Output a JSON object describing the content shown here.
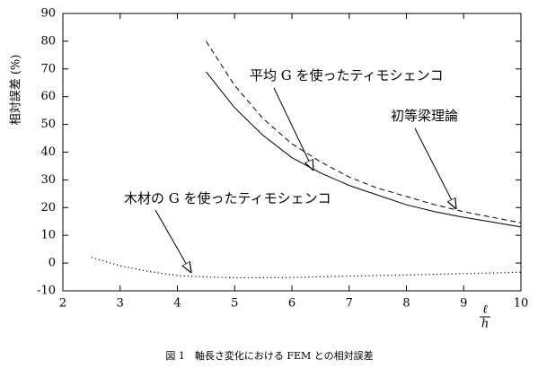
{
  "chart_data": {
    "type": "line",
    "ylabel": "相対誤差 (%)",
    "xlabel_numerator": "ℓ",
    "xlabel_denominator": "h",
    "caption": "図 1　軸長さ変化における FEM との相対誤差",
    "xlim": [
      2,
      10
    ],
    "xticks": [
      2,
      3,
      4,
      5,
      6,
      7,
      8,
      9,
      10
    ],
    "ylim": [
      -10,
      90
    ],
    "yticks": [
      -10,
      0,
      10,
      20,
      30,
      40,
      50,
      60,
      70,
      80,
      90
    ],
    "series": [
      {
        "name": "平均 G を使ったティモシェンコ",
        "color": "#000000",
        "dash": "solid",
        "x": [
          4.5,
          5,
          5.5,
          6,
          6.5,
          7,
          7.5,
          8,
          8.5,
          9,
          9.5,
          10
        ],
        "values": [
          69,
          56,
          46,
          38,
          32.5,
          28,
          24.5,
          21,
          18.5,
          16.5,
          14.8,
          13
        ]
      },
      {
        "name": "初等梁理論",
        "color": "#000000",
        "dash": "dashed",
        "x": [
          4.5,
          5,
          5.5,
          6,
          6.5,
          7,
          7.5,
          8,
          8.5,
          9,
          9.5,
          10
        ],
        "values": [
          80,
          64,
          52,
          43,
          36.5,
          31,
          27,
          24,
          21,
          18.5,
          16.5,
          14.5
        ]
      },
      {
        "name": "木材の G を使ったティモシェンコ",
        "color": "#000000",
        "dash": "dotted",
        "x": [
          2.5,
          3,
          3.5,
          4,
          4.5,
          5,
          6,
          7,
          8,
          9,
          10
        ],
        "values": [
          2,
          -1,
          -3,
          -4.5,
          -5,
          -5.3,
          -5.2,
          -4.7,
          -4.3,
          -3.8,
          -3.3
        ]
      }
    ]
  }
}
